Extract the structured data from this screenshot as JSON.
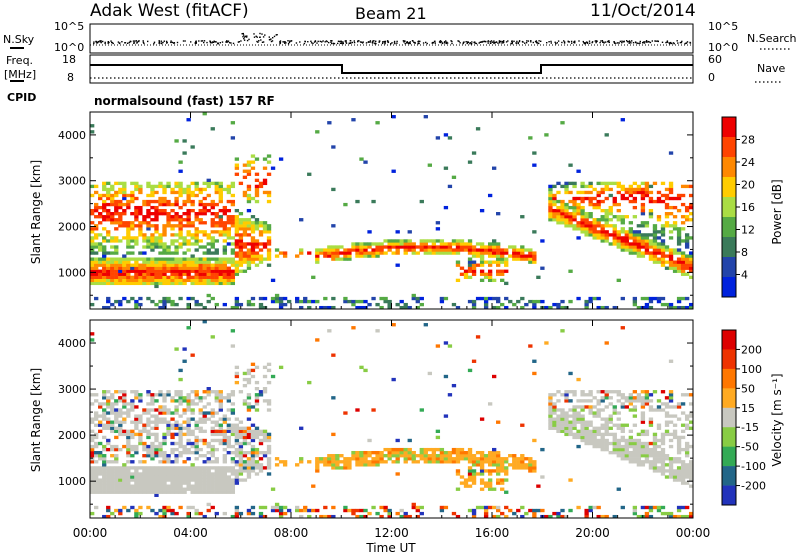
{
  "header": {
    "station": "Adak West (fitACF)",
    "beam": "Beam 21",
    "date": "11/Oct/2014"
  },
  "noise_panel": {
    "left_label": "N.Sky",
    "right_label": "N.Search",
    "left_ticks": [
      "10^5",
      "10^0"
    ],
    "right_ticks": [
      "10^5",
      "10^0"
    ]
  },
  "freq_panel": {
    "left_label_1": "Freq.",
    "left_label_2": "[MHz]",
    "left_ticks": [
      "18",
      "8"
    ],
    "right_label": "Nave",
    "right_ticks": [
      "60",
      "0"
    ],
    "cpid_label": "CPID",
    "cpid_text": "normalsound (fast) 157 RF"
  },
  "chart_data": [
    {
      "type": "heatmap",
      "name": "power",
      "ylabel": "Slant Range [km]",
      "yticks": [
        "4000",
        "3000",
        "2000",
        "1000"
      ],
      "ylim": [
        200,
        4500
      ],
      "xlim": [
        0,
        24
      ],
      "colorbar_label": "Power [dB]",
      "colorbar_ticks": [
        "28",
        "24",
        "20",
        "16",
        "12",
        "8",
        "4"
      ],
      "colors": [
        "#0022dd",
        "#2244aa",
        "#3a7a5a",
        "#55aa44",
        "#aadd44",
        "#ffcc00",
        "#ff8800",
        "#ff4400",
        "#ee0000"
      ]
    },
    {
      "type": "heatmap",
      "name": "velocity",
      "ylabel": "Slant Range [km]",
      "yticks": [
        "4000",
        "3000",
        "2000",
        "1000"
      ],
      "ylim": [
        200,
        4500
      ],
      "xlim": [
        0,
        24
      ],
      "colorbar_label": "Velocity [m s⁻¹]",
      "colorbar_ticks": [
        "200",
        "100",
        "50",
        "15",
        "-15",
        "-50",
        "-100",
        "-200"
      ],
      "colors": [
        "#2233bb",
        "#226688",
        "#33aa55",
        "#88cc44",
        "#c8c8c0",
        "#ffaa22",
        "#ff7700",
        "#ee3300",
        "#dd0000"
      ]
    }
  ],
  "xaxis": {
    "ticks": [
      "00:00",
      "04:00",
      "08:00",
      "12:00",
      "16:00",
      "20:00",
      "00:00"
    ],
    "label": "Time UT"
  }
}
